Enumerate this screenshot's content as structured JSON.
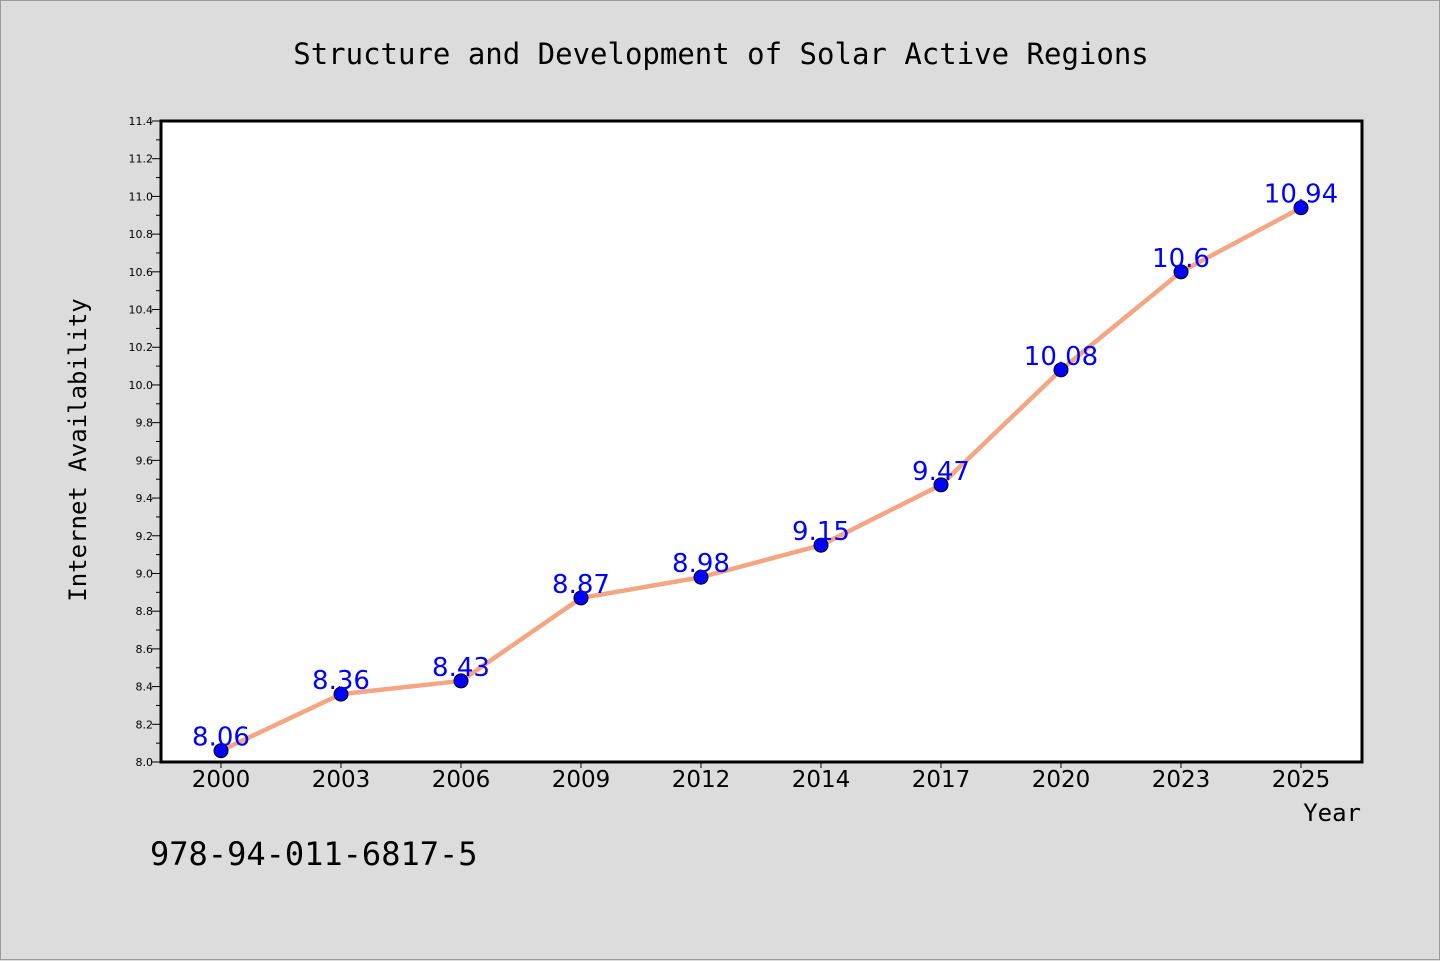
{
  "chart_data": {
    "type": "line",
    "title": "Structure and Development of Solar Active Regions",
    "xlabel": "Year",
    "ylabel": "Internet Availability",
    "categories": [
      "2000",
      "2003",
      "2006",
      "2009",
      "2012",
      "2014",
      "2017",
      "2020",
      "2023",
      "2025"
    ],
    "series": [
      {
        "values": [
          8.06,
          8.36,
          8.43,
          8.87,
          8.98,
          9.15,
          9.47,
          10.08,
          10.6,
          10.94
        ]
      }
    ],
    "data_labels": [
      "8.06",
      "8.36",
      "8.43",
      "8.87",
      "8.98",
      "9.15",
      "9.47",
      "10.08",
      "10.6",
      "10.94"
    ],
    "ylim": [
      8.0,
      11.4
    ],
    "y_ticks": [
      "8.0",
      "8.2",
      "8.4",
      "8.6",
      "8.8",
      "9.0",
      "9.2",
      "9.4",
      "9.6",
      "9.8",
      "10.0",
      "10.2",
      "10.4",
      "10.6",
      "10.8",
      "11.0",
      "11.2",
      "11.4"
    ],
    "grid": false,
    "legend": "none",
    "colors": {
      "line": "#f4a582",
      "marker": "#0000ff",
      "data_label": "#0000ff",
      "plot_background": "#ffffff",
      "figure_background": "#dcdcdc"
    }
  },
  "annotation": {
    "isbn": "978-94-011-6817-5"
  }
}
